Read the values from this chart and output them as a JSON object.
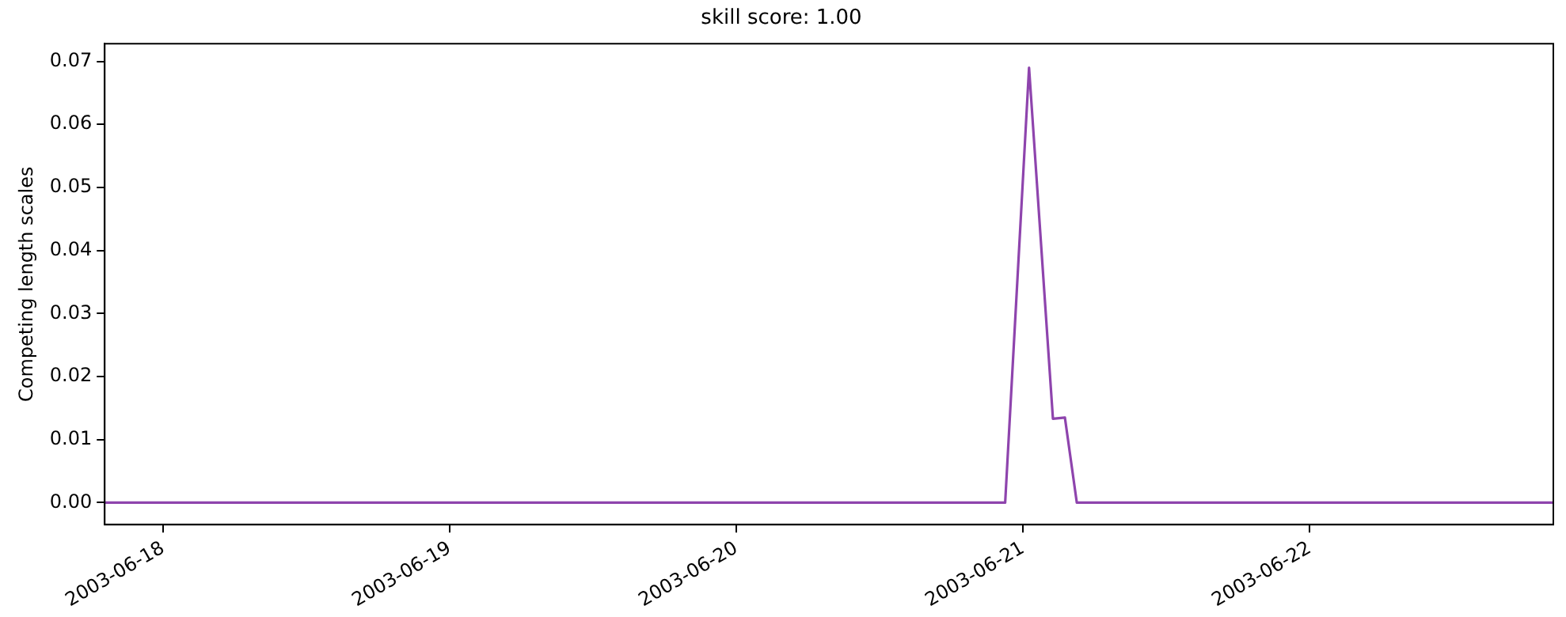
{
  "chart_data": {
    "type": "line",
    "title": "skill score: 1.00",
    "ylabel": "Competing length scales",
    "x": [
      "2003-06-17T19:06",
      "2003-06-20T22:30",
      "2003-06-21T00:30",
      "2003-06-21T02:30",
      "2003-06-21T03:30",
      "2003-06-21T04:30",
      "2003-06-22T20:24"
    ],
    "series": [
      {
        "color": "#8e44ad",
        "values": [
          0,
          0,
          0.069,
          0.0133,
          0.0135,
          0,
          0
        ]
      }
    ],
    "xlim": [
      "2003-06-17T19:06",
      "2003-06-22T20:24"
    ],
    "xticks": [
      "2003-06-18",
      "2003-06-19",
      "2003-06-20",
      "2003-06-21",
      "2003-06-22"
    ],
    "ylim": [
      -0.0035,
      0.0728
    ],
    "yticks": [
      {
        "value": 0,
        "label": "0.00"
      },
      {
        "value": 0.01,
        "label": "0.01"
      },
      {
        "value": 0.02,
        "label": "0.02"
      },
      {
        "value": 0.03,
        "label": "0.03"
      },
      {
        "value": 0.04,
        "label": "0.04"
      },
      {
        "value": 0.05,
        "label": "0.05"
      },
      {
        "value": 0.06,
        "label": "0.06"
      },
      {
        "value": 0.07,
        "label": "0.07"
      }
    ],
    "grid": false,
    "legend": false,
    "marker": "none",
    "line_style": "solid"
  }
}
